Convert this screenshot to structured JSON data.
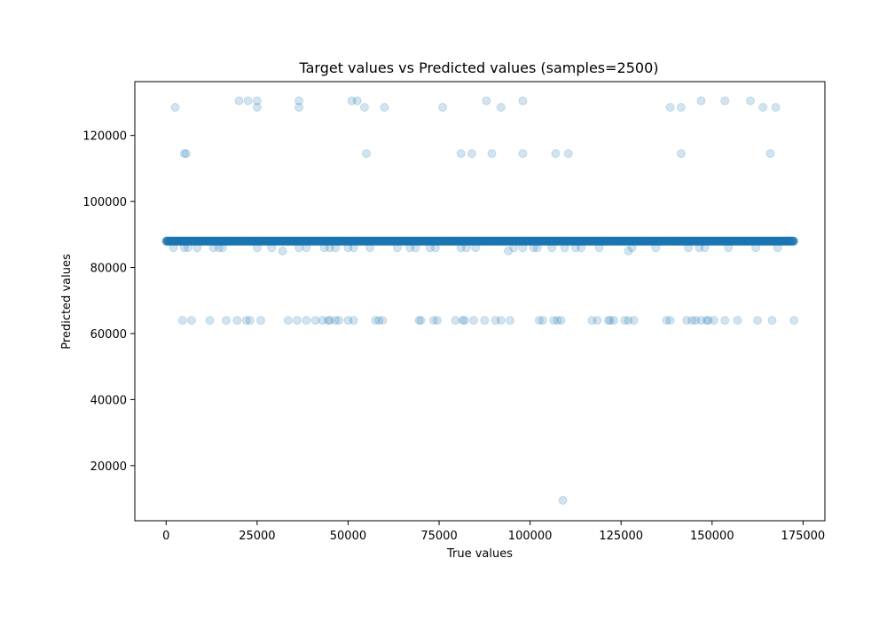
{
  "chart_data": {
    "type": "scatter",
    "title": "Target values vs Predicted values (samples=2500)",
    "xlabel": "True values",
    "ylabel": "Predicted values",
    "xlim": [
      -8600,
      181000
    ],
    "ylim": [
      3300,
      136300
    ],
    "xticks": [
      0,
      25000,
      50000,
      75000,
      100000,
      125000,
      150000,
      175000
    ],
    "yticks": [
      20000,
      40000,
      60000,
      80000,
      100000,
      120000
    ],
    "grid": false,
    "legend": "none",
    "marker_color": "#1f77b4",
    "marker_alpha": 0.2,
    "band": {
      "y": 88000,
      "x_range": [
        0,
        172500
      ],
      "count": 2200
    },
    "points": [
      {
        "x": 2500,
        "y": 128500
      },
      {
        "x": 20000,
        "y": 130500
      },
      {
        "x": 22500,
        "y": 130500
      },
      {
        "x": 25000,
        "y": 130500
      },
      {
        "x": 25000,
        "y": 128500
      },
      {
        "x": 36500,
        "y": 130500
      },
      {
        "x": 36500,
        "y": 128500
      },
      {
        "x": 51000,
        "y": 130500
      },
      {
        "x": 52500,
        "y": 130500
      },
      {
        "x": 54500,
        "y": 128500
      },
      {
        "x": 60000,
        "y": 128500
      },
      {
        "x": 76000,
        "y": 128500
      },
      {
        "x": 88000,
        "y": 130500
      },
      {
        "x": 92000,
        "y": 128500
      },
      {
        "x": 98000,
        "y": 130500
      },
      {
        "x": 138500,
        "y": 128500
      },
      {
        "x": 141500,
        "y": 128500
      },
      {
        "x": 147000,
        "y": 130500
      },
      {
        "x": 153500,
        "y": 130500
      },
      {
        "x": 160500,
        "y": 130500
      },
      {
        "x": 164000,
        "y": 128500
      },
      {
        "x": 167500,
        "y": 128500
      },
      {
        "x": 5000,
        "y": 114500
      },
      {
        "x": 5500,
        "y": 114500
      },
      {
        "x": 55000,
        "y": 114500
      },
      {
        "x": 81000,
        "y": 114500
      },
      {
        "x": 84000,
        "y": 114500
      },
      {
        "x": 89500,
        "y": 114500
      },
      {
        "x": 98000,
        "y": 114500
      },
      {
        "x": 107000,
        "y": 114500
      },
      {
        "x": 110500,
        "y": 114500
      },
      {
        "x": 141500,
        "y": 114500
      },
      {
        "x": 166000,
        "y": 114500
      },
      {
        "x": 2000,
        "y": 86000
      },
      {
        "x": 5000,
        "y": 86000
      },
      {
        "x": 6000,
        "y": 86000
      },
      {
        "x": 8500,
        "y": 86000
      },
      {
        "x": 13000,
        "y": 86000
      },
      {
        "x": 14500,
        "y": 86000
      },
      {
        "x": 15500,
        "y": 86000
      },
      {
        "x": 25000,
        "y": 86000
      },
      {
        "x": 29000,
        "y": 86000
      },
      {
        "x": 32000,
        "y": 85000
      },
      {
        "x": 36500,
        "y": 86000
      },
      {
        "x": 38500,
        "y": 86000
      },
      {
        "x": 43500,
        "y": 86000
      },
      {
        "x": 45000,
        "y": 86000
      },
      {
        "x": 46500,
        "y": 86000
      },
      {
        "x": 50000,
        "y": 86000
      },
      {
        "x": 51500,
        "y": 86000
      },
      {
        "x": 56000,
        "y": 86000
      },
      {
        "x": 63500,
        "y": 86000
      },
      {
        "x": 67000,
        "y": 86000
      },
      {
        "x": 68500,
        "y": 86000
      },
      {
        "x": 72500,
        "y": 86000
      },
      {
        "x": 74000,
        "y": 86000
      },
      {
        "x": 81000,
        "y": 86000
      },
      {
        "x": 82500,
        "y": 86000
      },
      {
        "x": 85000,
        "y": 86000
      },
      {
        "x": 94000,
        "y": 85000
      },
      {
        "x": 95500,
        "y": 86000
      },
      {
        "x": 98000,
        "y": 86000
      },
      {
        "x": 101000,
        "y": 86000
      },
      {
        "x": 102000,
        "y": 86000
      },
      {
        "x": 106000,
        "y": 86000
      },
      {
        "x": 109500,
        "y": 86000
      },
      {
        "x": 112500,
        "y": 86000
      },
      {
        "x": 114000,
        "y": 86000
      },
      {
        "x": 119000,
        "y": 86000
      },
      {
        "x": 127000,
        "y": 85000
      },
      {
        "x": 128000,
        "y": 86000
      },
      {
        "x": 134500,
        "y": 86000
      },
      {
        "x": 143500,
        "y": 86000
      },
      {
        "x": 146500,
        "y": 86000
      },
      {
        "x": 148000,
        "y": 86000
      },
      {
        "x": 154500,
        "y": 86000
      },
      {
        "x": 162000,
        "y": 86000
      },
      {
        "x": 168000,
        "y": 86000
      },
      {
        "x": 4500,
        "y": 64000
      },
      {
        "x": 7000,
        "y": 64000
      },
      {
        "x": 12000,
        "y": 64000
      },
      {
        "x": 16500,
        "y": 64000
      },
      {
        "x": 19500,
        "y": 64000
      },
      {
        "x": 22000,
        "y": 64000
      },
      {
        "x": 23000,
        "y": 64000
      },
      {
        "x": 26000,
        "y": 64000
      },
      {
        "x": 33500,
        "y": 64000
      },
      {
        "x": 36000,
        "y": 64000
      },
      {
        "x": 38500,
        "y": 64000
      },
      {
        "x": 41000,
        "y": 64000
      },
      {
        "x": 43000,
        "y": 64000
      },
      {
        "x": 44500,
        "y": 64000
      },
      {
        "x": 45000,
        "y": 64000
      },
      {
        "x": 46500,
        "y": 64000
      },
      {
        "x": 47500,
        "y": 64000
      },
      {
        "x": 50000,
        "y": 64000
      },
      {
        "x": 51500,
        "y": 64000
      },
      {
        "x": 57500,
        "y": 64000
      },
      {
        "x": 58500,
        "y": 64000
      },
      {
        "x": 59500,
        "y": 64000
      },
      {
        "x": 69500,
        "y": 64000
      },
      {
        "x": 70000,
        "y": 64000
      },
      {
        "x": 73500,
        "y": 64000
      },
      {
        "x": 74500,
        "y": 64000
      },
      {
        "x": 79500,
        "y": 64000
      },
      {
        "x": 81500,
        "y": 64000
      },
      {
        "x": 82000,
        "y": 64000
      },
      {
        "x": 84500,
        "y": 64000
      },
      {
        "x": 87500,
        "y": 64000
      },
      {
        "x": 90500,
        "y": 64000
      },
      {
        "x": 92000,
        "y": 64000
      },
      {
        "x": 94500,
        "y": 64000
      },
      {
        "x": 102500,
        "y": 64000
      },
      {
        "x": 103500,
        "y": 64000
      },
      {
        "x": 106500,
        "y": 64000
      },
      {
        "x": 107500,
        "y": 64000
      },
      {
        "x": 108500,
        "y": 64000
      },
      {
        "x": 117000,
        "y": 64000
      },
      {
        "x": 118500,
        "y": 64000
      },
      {
        "x": 121500,
        "y": 64000
      },
      {
        "x": 122000,
        "y": 64000
      },
      {
        "x": 123000,
        "y": 64000
      },
      {
        "x": 126000,
        "y": 64000
      },
      {
        "x": 127000,
        "y": 64000
      },
      {
        "x": 128500,
        "y": 64000
      },
      {
        "x": 137500,
        "y": 64000
      },
      {
        "x": 138500,
        "y": 64000
      },
      {
        "x": 143000,
        "y": 64000
      },
      {
        "x": 144500,
        "y": 64000
      },
      {
        "x": 145500,
        "y": 64000
      },
      {
        "x": 147000,
        "y": 64000
      },
      {
        "x": 148500,
        "y": 64000
      },
      {
        "x": 149000,
        "y": 64000
      },
      {
        "x": 150500,
        "y": 64000
      },
      {
        "x": 153500,
        "y": 64000
      },
      {
        "x": 157000,
        "y": 64000
      },
      {
        "x": 162500,
        "y": 64000
      },
      {
        "x": 166500,
        "y": 64000
      },
      {
        "x": 172500,
        "y": 64000
      },
      {
        "x": 109000,
        "y": 9500
      }
    ]
  }
}
